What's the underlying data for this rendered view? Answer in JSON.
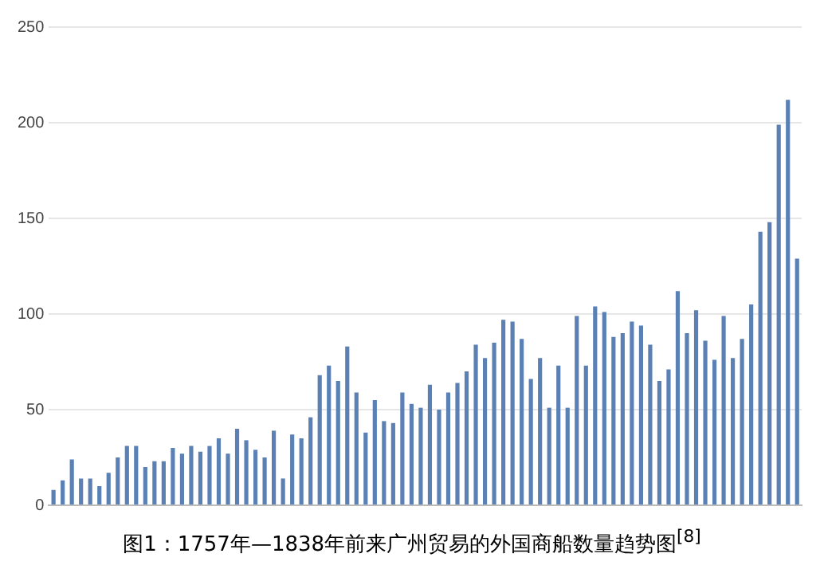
{
  "chart_data": {
    "type": "bar",
    "title": "图1：1757年—1838年前来广州贸易的外国商船数量趋势图$^{[8]}$",
    "categories": [
      null,
      null,
      null,
      null,
      null,
      null,
      null,
      null,
      null,
      null,
      null,
      null,
      null,
      null,
      null,
      null,
      null,
      null,
      null,
      null,
      null,
      null,
      null,
      null,
      null,
      null,
      null,
      null,
      null,
      null,
      null,
      null,
      null,
      null,
      null,
      null,
      null,
      null,
      null,
      null,
      null,
      null,
      null,
      null,
      null,
      null,
      null,
      null,
      null,
      null,
      null,
      null,
      null,
      null,
      null,
      null,
      null,
      null,
      null,
      null,
      null,
      null,
      null,
      null,
      null,
      null,
      null,
      null,
      null,
      null,
      null,
      null,
      null,
      null,
      null,
      null,
      null,
      null,
      null,
      null,
      null,
      null
    ],
    "values": [
      8,
      13,
      24,
      14,
      14,
      10,
      17,
      25,
      31,
      31,
      20,
      23,
      23,
      30,
      27,
      31,
      28,
      31,
      35,
      27,
      40,
      34,
      29,
      25,
      39,
      14,
      37,
      35,
      46,
      68,
      73,
      65,
      83,
      59,
      38,
      55,
      44,
      43,
      59,
      53,
      51,
      63,
      50,
      59,
      64,
      70,
      84,
      77,
      85,
      97,
      96,
      87,
      66,
      77,
      51,
      73,
      51,
      99,
      73,
      104,
      101,
      88,
      90,
      96,
      94,
      84,
      65,
      71,
      112,
      90,
      102,
      86,
      76,
      99,
      77,
      87,
      105,
      143,
      148,
      199,
      212,
      129
    ],
    "color": "#5b80b3",
    "ylim": [
      0,
      250
    ],
    "yticks": [
      0,
      50,
      100,
      150,
      200,
      250
    ],
    "grid": "y"
  }
}
